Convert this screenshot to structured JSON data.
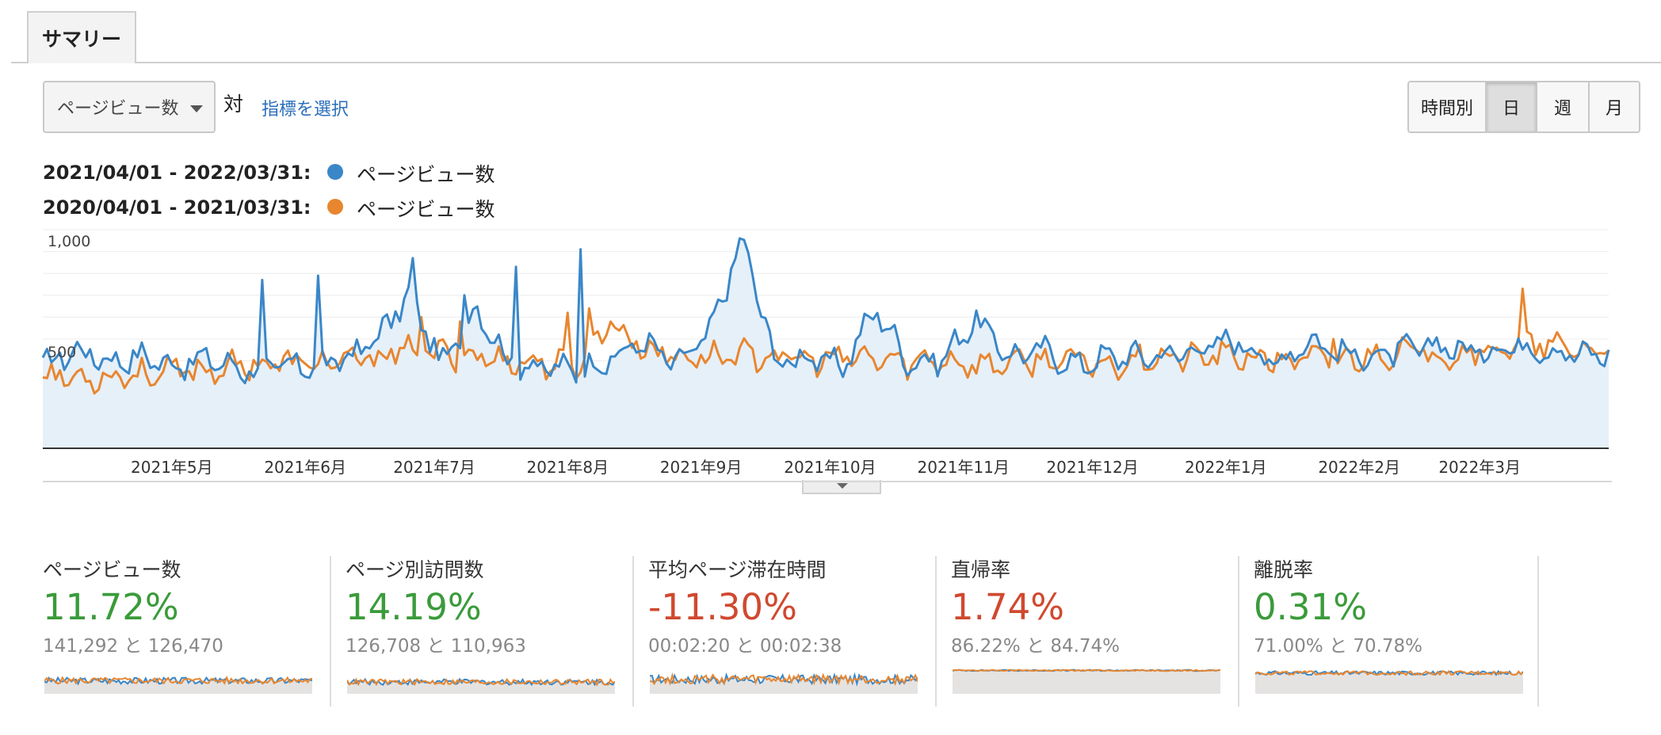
{
  "tabs": {
    "summary_label": "サマリー"
  },
  "controls": {
    "metric_select": "ページビュー数",
    "versus": "対",
    "choose_metric": "指標を選択",
    "granularity": [
      "時間別",
      "日",
      "週",
      "月"
    ],
    "granularity_selected": "日"
  },
  "legend": [
    {
      "range": "2021/04/01 - 2022/03/31:",
      "metric": "ページビュー数",
      "color": "#3a87c8"
    },
    {
      "range": "2020/04/01 - 2021/03/31:",
      "metric": "ページビュー数",
      "color": "#e8862f"
    }
  ],
  "chart_data": {
    "type": "area",
    "y_ticks": [
      "1,000",
      "500"
    ],
    "ylim": [
      0,
      1000
    ],
    "grid": true,
    "x_ticks": [
      "2021年5月",
      "2021年6月",
      "2021年7月",
      "2021年8月",
      "2021年9月",
      "2021年10月",
      "2021年11月",
      "2021年12月",
      "2022年1月",
      "2022年2月",
      "2022年3月"
    ],
    "x_tick_day_index": [
      30,
      61,
      91,
      122,
      153,
      183,
      214,
      244,
      275,
      306,
      334
    ],
    "days": 365,
    "series": [
      {
        "name": "ページビュー数",
        "period": "2021/04/01 - 2022/03/31",
        "color": "#3a87c8",
        "fill": true,
        "base": [
          380,
          450,
          400,
          420,
          380,
          410,
          360,
          370,
          380,
          400,
          500,
          700,
          380,
          650,
          390,
          370,
          360,
          400,
          490,
          380,
          520,
          960,
          390,
          420,
          370,
          640,
          390,
          410,
          590,
          420,
          450,
          380,
          420,
          420,
          430,
          470,
          490,
          380,
          500,
          430,
          420,
          450,
          470,
          440,
          470,
          460,
          430,
          430
        ],
        "spikes": [
          [
            51,
            770
          ],
          [
            64,
            790
          ],
          [
            86,
            870
          ],
          [
            98,
            700
          ],
          [
            110,
            830
          ],
          [
            125,
            910
          ]
        ]
      },
      {
        "name": "ページビュー数",
        "period": "2020/04/01 - 2021/03/31",
        "color": "#e8862f",
        "fill": false,
        "base": [
          340,
          320,
          330,
          340,
          350,
          360,
          380,
          390,
          390,
          390,
          420,
          450,
          430,
          420,
          400,
          390,
          380,
          580,
          460,
          420,
          420,
          430,
          420,
          400,
          410,
          410,
          390,
          410,
          380,
          390,
          400,
          400,
          380,
          420,
          410,
          420,
          420,
          400,
          410,
          400,
          430,
          440,
          430,
          440,
          460,
          470,
          450,
          450
        ],
        "spikes": [
          [
            88,
            600
          ],
          [
            97,
            580
          ],
          [
            122,
            620
          ],
          [
            127,
            640
          ],
          [
            300,
            500
          ],
          [
            344,
            730
          ]
        ]
      }
    ]
  },
  "summary_cards": [
    {
      "name": "ページビュー数",
      "pct": "11.72%",
      "trend": "good",
      "cmp": "141,292 と 126,470",
      "spark_level": 0.45,
      "spark_var": 0.25
    },
    {
      "name": "ページ別訪問数",
      "pct": "14.19%",
      "trend": "good",
      "cmp": "126,708 と 110,963",
      "spark_level": 0.4,
      "spark_var": 0.22
    },
    {
      "name": "平均ページ滞在時間",
      "pct": "-11.30%",
      "trend": "bad",
      "cmp": "00:02:20 と 00:02:38",
      "spark_level": 0.5,
      "spark_var": 0.35
    },
    {
      "name": "直帰率",
      "pct": "1.74%",
      "trend": "bad",
      "cmp": "86.22% と 84.74%",
      "spark_level": 0.85,
      "spark_var": 0.05
    },
    {
      "name": "離脱率",
      "pct": "0.31%",
      "trend": "good",
      "cmp": "71.00% と 70.78%",
      "spark_level": 0.75,
      "spark_var": 0.15
    }
  ],
  "colors": {
    "good": "#3a9b3a",
    "bad": "#d0492f",
    "area_fill": "#e6f0f9",
    "spark_fill": "#e5e3e1"
  }
}
